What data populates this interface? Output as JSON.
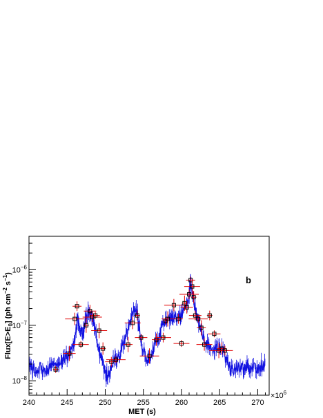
{
  "chart_data": {
    "type": "line",
    "xlabel": "MET (s)",
    "ylabel": "Flux[E>E",
    "ylabel_sub": "0",
    "ylabel_rest": "] (ph cm",
    "ylabel_sup1": "−2",
    "ylabel_mid": " s",
    "ylabel_sup2": "−1",
    "ylabel_end": ")",
    "panel_label": "b",
    "x_exponent_label": "×10",
    "x_exponent": "6",
    "x_scale": "linear (×10^6 s)",
    "y_scale": "log",
    "xlim": [
      240,
      271.5
    ],
    "ylim": [
      5.5e-09,
      4e-06
    ],
    "x_ticks": [
      240,
      245,
      250,
      255,
      260,
      265,
      270
    ],
    "x_tick_labels": [
      "240",
      "245",
      "250",
      "255",
      "260",
      "265",
      "270"
    ],
    "y_ticks": [
      1e-08,
      1e-07,
      1e-06
    ],
    "y_tick_base": "10",
    "y_tick_exponents": [
      "−8",
      "−7",
      "−6"
    ],
    "grid": false,
    "legend": "none",
    "series": [
      {
        "style": "blue-line-with-errorbars",
        "color": "#1010e0",
        "x": [
          240.0,
          240.5,
          241.0,
          241.5,
          242.0,
          242.5,
          243.0,
          243.5,
          244.0,
          244.5,
          245.0,
          245.5,
          246.0,
          246.3,
          246.6,
          247.0,
          247.3,
          247.6,
          248.0,
          248.3,
          248.6,
          249.0,
          249.3,
          249.6,
          250.0,
          250.3,
          250.6,
          251.0,
          251.5,
          252.0,
          252.5,
          253.0,
          253.5,
          254.0,
          254.3,
          254.6,
          255.0,
          255.5,
          256.0,
          256.5,
          257.0,
          257.5,
          258.0,
          258.5,
          259.0,
          259.5,
          260.0,
          260.5,
          261.0,
          261.2,
          261.4,
          261.6,
          262.0,
          262.5,
          263.0,
          263.5,
          264.0,
          264.5,
          265.0,
          265.5,
          266.0,
          266.5,
          267.0,
          267.5,
          268.0,
          268.5,
          269.0,
          269.5,
          270.0,
          270.5,
          271.0
        ],
        "y": [
          2.2e-08,
          1.6e-08,
          1.4e-08,
          1.8e-08,
          1.5e-08,
          1.7e-08,
          2e-08,
          1.6e-08,
          2.2e-08,
          2.5e-08,
          2.6e-08,
          3.5e-08,
          5.5e-08,
          1.3e-07,
          1e-07,
          7e-08,
          1.1e-07,
          1.6e-07,
          1.8e-07,
          1.5e-07,
          9e-08,
          5e-08,
          3e-08,
          2e-08,
          1.4e-08,
          1.2e-08,
          1.5e-08,
          2.2e-08,
          2.5e-08,
          3e-08,
          5.5e-08,
          9e-08,
          1.4e-07,
          2.2e-07,
          1.3e-07,
          6e-08,
          3.5e-08,
          2.2e-08,
          2.8e-08,
          4.5e-08,
          6e-08,
          1e-07,
          1.3e-07,
          1.2e-07,
          1.5e-07,
          1.3e-07,
          1.6e-07,
          2.2e-07,
          3.5e-07,
          6.5e-07,
          4.5e-07,
          2.8e-07,
          1.5e-07,
          9e-08,
          6e-08,
          4e-08,
          3.5e-08,
          4e-08,
          4.5e-08,
          3.5e-08,
          2e-08,
          1.5e-08,
          1.6e-08,
          1.8e-08,
          1.7e-08,
          1.9e-08,
          1.6e-08,
          1.8e-08,
          1.7e-08,
          1.9e-08,
          1.8e-08
        ]
      },
      {
        "style": "black-open-squares-with-red-errorbars",
        "color": "#e00000",
        "marker_color": "#000000",
        "x": [
          243.5,
          245.3,
          246.0,
          246.3,
          246.8,
          247.5,
          248.0,
          248.3,
          248.7,
          249.2,
          249.7,
          250.8,
          251.4,
          253.0,
          253.6,
          254.2,
          254.7,
          255.8,
          256.7,
          257.6,
          257.9,
          258.2,
          259.0,
          259.6,
          260.0,
          260.4,
          260.7,
          261.0,
          261.2,
          261.4,
          261.6,
          261.8,
          262.2,
          262.6,
          263.0,
          263.7,
          264.3,
          264.9,
          265.3,
          265.7
        ],
        "y": [
          1.6e-08,
          3.1e-08,
          1.3e-07,
          2.2e-07,
          4.5e-08,
          1e-07,
          1.8e-07,
          1.4e-07,
          1.5e-07,
          8e-08,
          3.8e-08,
          2.2e-08,
          2.4e-08,
          4.5e-08,
          1.1e-07,
          1.5e-07,
          6e-08,
          2.8e-08,
          5.5e-08,
          6e-08,
          1.2e-07,
          1.3e-07,
          2.3e-07,
          1.3e-07,
          4.7e-08,
          2.5e-07,
          2.1e-07,
          3.6e-07,
          6.5e-07,
          5e-07,
          3.2e-07,
          1.5e-07,
          1.3e-07,
          9e-08,
          4.5e-08,
          1.5e-07,
          7e-08,
          3.5e-08,
          3.8e-08,
          3.5e-08
        ]
      }
    ]
  }
}
